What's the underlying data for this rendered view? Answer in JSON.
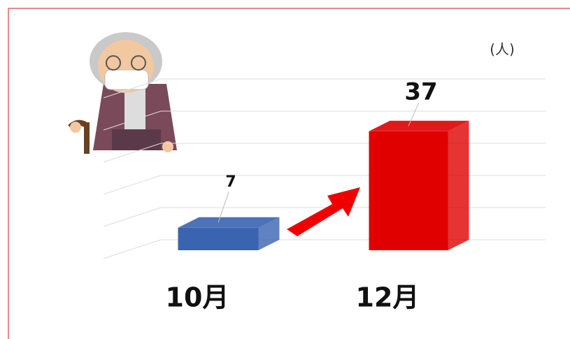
{
  "chart_data": {
    "type": "bar3d",
    "unit": "(人)",
    "categories": [
      "10月",
      "12月"
    ],
    "values": [
      7,
      37
    ],
    "colors": [
      "#3a63b0",
      "#e00000"
    ],
    "ylim": [
      0,
      50
    ],
    "yticks": [
      0,
      10,
      20,
      30,
      40,
      50
    ],
    "grid": true
  }
}
